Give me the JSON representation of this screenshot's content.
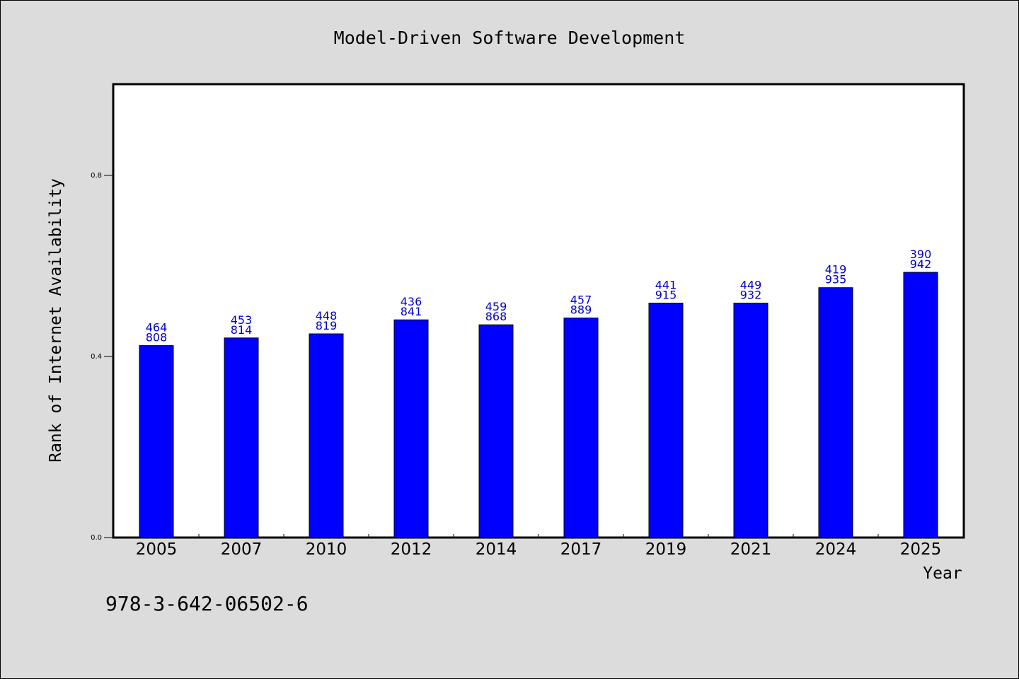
{
  "chart_data": {
    "type": "bar",
    "title": "Model-Driven Software Development",
    "xlabel": "Year",
    "ylabel": "Rank of Internet Availability",
    "footer": "978-3-642-06502-6",
    "ylim": [
      0,
      1.0
    ],
    "yticks": [
      0.0,
      0.4,
      0.8
    ],
    "ytick_labels": [
      "0.0",
      "0.4",
      "0.8"
    ],
    "grid": false,
    "categories": [
      "2005",
      "2007",
      "2010",
      "2012",
      "2014",
      "2017",
      "2019",
      "2021",
      "2024",
      "2025"
    ],
    "values": [
      0.424,
      0.441,
      0.45,
      0.481,
      0.47,
      0.485,
      0.518,
      0.518,
      0.552,
      0.586
    ],
    "data_labels": [
      [
        "464",
        "808"
      ],
      [
        "453",
        "814"
      ],
      [
        "448",
        "819"
      ],
      [
        "436",
        "841"
      ],
      [
        "459",
        "868"
      ],
      [
        "457",
        "889"
      ],
      [
        "441",
        "915"
      ],
      [
        "449",
        "932"
      ],
      [
        "419",
        "935"
      ],
      [
        "390",
        "942"
      ]
    ],
    "colors": {
      "bar": "#0000ff",
      "bar_edge": "#000000",
      "data_label": "#0000cc",
      "figure_background": "#dcdcdc",
      "plot_background": "#ffffff"
    }
  }
}
